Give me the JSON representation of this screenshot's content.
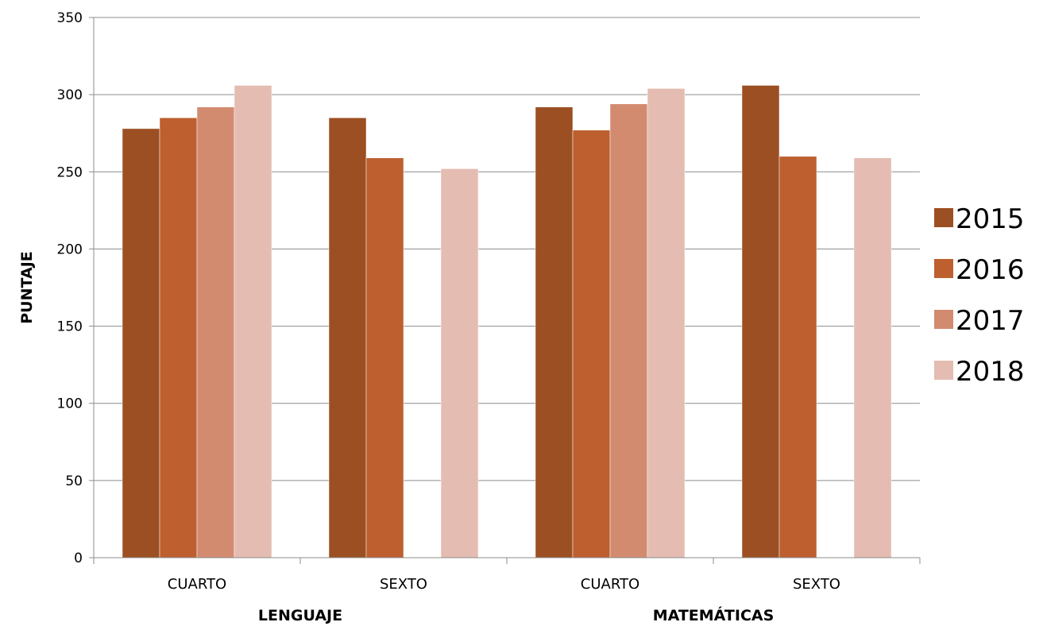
{
  "chart_data": {
    "type": "bar",
    "title": "",
    "xlabel": "",
    "ylabel": "PUNTAJE",
    "ylim": [
      0,
      350
    ],
    "yticks": [
      0,
      50,
      100,
      150,
      200,
      250,
      300,
      350
    ],
    "grid": true,
    "legend_position": "right",
    "groups": [
      {
        "label": "LENGUAJE",
        "categories": [
          "CUARTO",
          "SEXTO"
        ]
      },
      {
        "label": "MATEMÁTICAS",
        "categories": [
          "CUARTO",
          "SEXTO"
        ]
      }
    ],
    "categories": [
      "CUARTO",
      "SEXTO",
      "CUARTO",
      "SEXTO"
    ],
    "series": [
      {
        "name": "2015",
        "color": "#9C4F23",
        "values": [
          278,
          285,
          292,
          306
        ]
      },
      {
        "name": "2016",
        "color": "#BD5F2F",
        "values": [
          285,
          259,
          277,
          260
        ]
      },
      {
        "name": "2017",
        "color": "#D38B70",
        "values": [
          292,
          null,
          294,
          null
        ]
      },
      {
        "name": "2018",
        "color": "#E4BCB1",
        "values": [
          306,
          252,
          304,
          259
        ]
      }
    ]
  }
}
